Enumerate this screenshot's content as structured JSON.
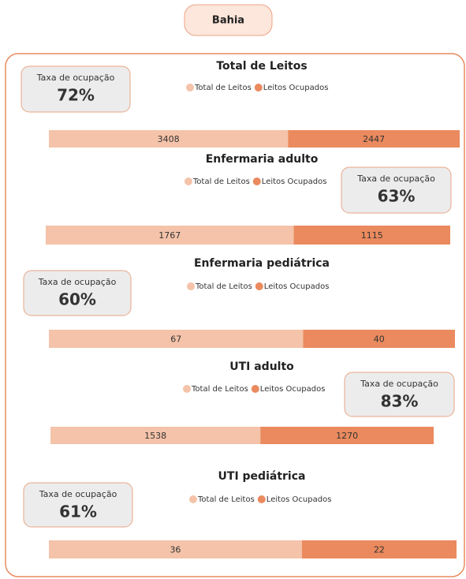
{
  "header": {
    "title": "Bahia"
  },
  "chart_data": [
    {
      "type": "bar",
      "title": "Total de Leitos",
      "orientation": "horizontal",
      "stacked": true,
      "kpi": {
        "label": "Taxa de ocupação",
        "value": "72%"
      },
      "series": [
        {
          "name": "Total de Leitos",
          "color": "#f4c3a9",
          "values": [
            3408
          ]
        },
        {
          "name": "Leitos Ocupados",
          "color": "#ea8a5e",
          "values": [
            2447
          ]
        }
      ]
    },
    {
      "type": "bar",
      "title": "Enfermaria adulto",
      "orientation": "horizontal",
      "stacked": true,
      "kpi": {
        "label": "Taxa de ocupação",
        "value": "63%"
      },
      "series": [
        {
          "name": "Total de Leitos",
          "color": "#f4c3a9",
          "values": [
            1767
          ]
        },
        {
          "name": "Leitos Ocupados",
          "color": "#ea8a5e",
          "values": [
            1115
          ]
        }
      ]
    },
    {
      "type": "bar",
      "title": "Enfermaria pediátrica",
      "orientation": "horizontal",
      "stacked": true,
      "kpi": {
        "label": "Taxa de ocupação",
        "value": "60%"
      },
      "series": [
        {
          "name": "Total de Leitos",
          "color": "#f4c3a9",
          "values": [
            67
          ]
        },
        {
          "name": "Leitos Ocupados",
          "color": "#ea8a5e",
          "values": [
            40
          ]
        }
      ]
    },
    {
      "type": "bar",
      "title": "UTI adulto",
      "orientation": "horizontal",
      "stacked": true,
      "kpi": {
        "label": "Taxa de ocupação",
        "value": "83%"
      },
      "series": [
        {
          "name": "Total de Leitos",
          "color": "#f4c3a9",
          "values": [
            1538
          ]
        },
        {
          "name": "Leitos Ocupados",
          "color": "#ea8a5e",
          "values": [
            1270
          ]
        }
      ]
    },
    {
      "type": "bar",
      "title": "UTI pediátrica",
      "orientation": "horizontal",
      "stacked": true,
      "kpi": {
        "label": "Taxa de ocupação",
        "value": "61%"
      },
      "series": [
        {
          "name": "Total de Leitos",
          "color": "#f4c3a9",
          "values": [
            36
          ]
        },
        {
          "name": "Leitos Ocupados",
          "color": "#ea8a5e",
          "values": [
            22
          ]
        }
      ]
    }
  ]
}
